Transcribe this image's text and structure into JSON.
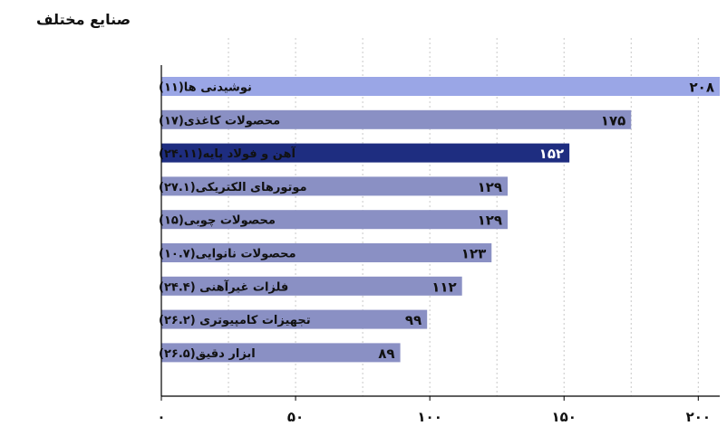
{
  "chart_data": {
    "type": "bar",
    "orientation": "horizontal",
    "title": "صنایع مختلف",
    "categories": [
      "نوشیدنی ها(۱۱)",
      "محصولات کاغذی(۱۷)",
      "آهن و فولاد پایه(۲۴.۱۱)",
      "موتورهای الکتریکی(۲۷.۱)",
      "محصولات چوبی(۱۵)",
      "محصولات نانوایی(۱۰.۷)",
      "فلزات غیرآهنی (۲۴.۴)",
      "تجهیزات کامپیوتری (۲۶.۲)",
      "ابزار دقیق(۲۶.۵)"
    ],
    "values": [
      208,
      175,
      152,
      129,
      129,
      123,
      112,
      99,
      89
    ],
    "value_labels": [
      "۲۰۸",
      "۱۷۵",
      "۱۵۲",
      "۱۲۹",
      "۱۲۹",
      "۱۲۳",
      "۱۱۲",
      "۹۹",
      "۸۹"
    ],
    "highlight_index": 2,
    "xlim": [
      0,
      208
    ],
    "xticks": [
      0,
      50,
      100,
      150,
      200
    ],
    "xtick_labels": [
      "۰",
      "۵۰",
      "۱۰۰",
      "۱۵۰",
      "۲۰۰"
    ],
    "grid": "vertical dotted",
    "colors": {
      "bar_top": "#9aa6e6",
      "bar_default": "#8a90c4",
      "bar_highlight": "#1e2d80",
      "label_on_dark": "#ffffff",
      "label_on_light": "#111111"
    }
  }
}
